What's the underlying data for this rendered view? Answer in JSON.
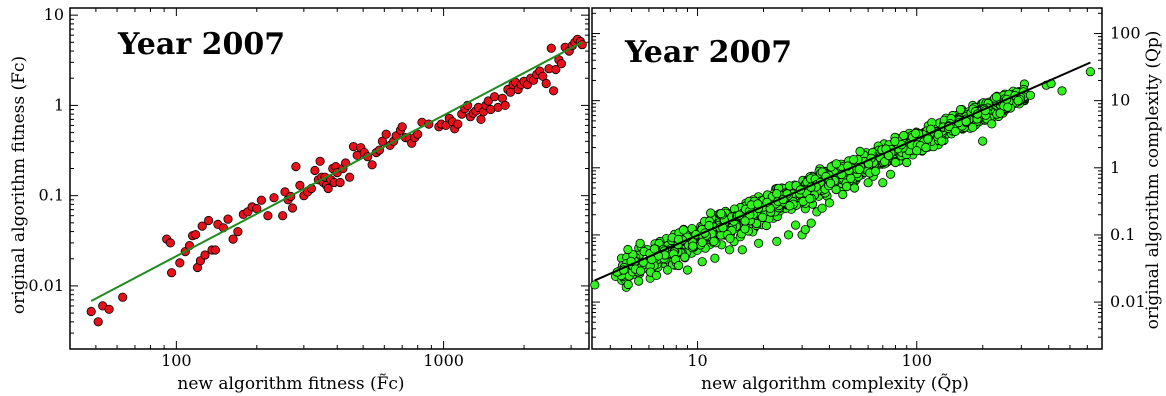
{
  "chart_data": [
    {
      "type": "scatter",
      "title": "Year 2007",
      "xlabel": "new algorithm fitness (F̃c)",
      "ylabel": "original algorithm fitness (Fc)",
      "xscale": "log",
      "yscale": "log",
      "xlim": [
        40,
        3500
      ],
      "ylim": [
        0.002,
        12
      ],
      "xticks": [
        100,
        1000
      ],
      "xtick_labels": [
        "100",
        "1000"
      ],
      "yticks": [
        0.01,
        0.1,
        1,
        10
      ],
      "ytick_labels": [
        "0.01",
        "0.1",
        "1",
        "10"
      ],
      "y_axis_side": "left",
      "grid": false,
      "colors": {
        "points": "#e8101a",
        "fit_line": "#1f8b1f"
      },
      "fit_line": [
        [
          48,
          0.0068
        ],
        [
          3300,
          5.0
        ]
      ],
      "series": [
        {
          "points": [
            [
              48,
              0.0052
            ],
            [
              51,
              0.004
            ],
            [
              53,
              0.006
            ],
            [
              56,
              0.0055
            ],
            [
              63,
              0.0075
            ],
            [
              92,
              0.033
            ],
            [
              95,
              0.03
            ],
            [
              96,
              0.014
            ],
            [
              103,
              0.018
            ],
            [
              108,
              0.024
            ],
            [
              112,
              0.028
            ],
            [
              115,
              0.036
            ],
            [
              118,
              0.037
            ],
            [
              120,
              0.016
            ],
            [
              123,
              0.019
            ],
            [
              125,
              0.046
            ],
            [
              128,
              0.022
            ],
            [
              132,
              0.053
            ],
            [
              136,
              0.025
            ],
            [
              140,
              0.025
            ],
            [
              143,
              0.048
            ],
            [
              150,
              0.044
            ],
            [
              156,
              0.055
            ],
            [
              163,
              0.033
            ],
            [
              170,
              0.04
            ],
            [
              178,
              0.062
            ],
            [
              185,
              0.066
            ],
            [
              192,
              0.075
            ],
            [
              200,
              0.072
            ],
            [
              208,
              0.089
            ],
            [
              220,
              0.06
            ],
            [
              232,
              0.095
            ],
            [
              250,
              0.06
            ],
            [
              255,
              0.11
            ],
            [
              262,
              0.09
            ],
            [
              268,
              0.098
            ],
            [
              272,
              0.073
            ],
            [
              280,
              0.21
            ],
            [
              290,
              0.13
            ],
            [
              300,
              0.1
            ],
            [
              310,
              0.11
            ],
            [
              320,
              0.12
            ],
            [
              330,
              0.19
            ],
            [
              340,
              0.15
            ],
            [
              345,
              0.24
            ],
            [
              350,
              0.16
            ],
            [
              355,
              0.14
            ],
            [
              360,
              0.16
            ],
            [
              365,
              0.13
            ],
            [
              370,
              0.12
            ],
            [
              378,
              0.15
            ],
            [
              385,
              0.2
            ],
            [
              390,
              0.14
            ],
            [
              395,
              0.21
            ],
            [
              400,
              0.18
            ],
            [
              410,
              0.14
            ],
            [
              420,
              0.2
            ],
            [
              430,
              0.23
            ],
            [
              445,
              0.16
            ],
            [
              460,
              0.35
            ],
            [
              475,
              0.28
            ],
            [
              490,
              0.34
            ],
            [
              505,
              0.3
            ],
            [
              520,
              0.27
            ],
            [
              540,
              0.22
            ],
            [
              560,
              0.3
            ],
            [
              575,
              0.32
            ],
            [
              590,
              0.4
            ],
            [
              610,
              0.48
            ],
            [
              630,
              0.36
            ],
            [
              650,
              0.4
            ],
            [
              665,
              0.46
            ],
            [
              690,
              0.53
            ],
            [
              700,
              0.58
            ],
            [
              720,
              0.44
            ],
            [
              745,
              0.43
            ],
            [
              760,
              0.38
            ],
            [
              780,
              0.44
            ],
            [
              800,
              0.48
            ],
            [
              830,
              0.65
            ],
            [
              880,
              0.62
            ],
            [
              960,
              0.58
            ],
            [
              980,
              0.62
            ],
            [
              1020,
              0.6
            ],
            [
              1050,
              0.72
            ],
            [
              1080,
              0.66
            ],
            [
              1100,
              0.55
            ],
            [
              1130,
              0.62
            ],
            [
              1170,
              0.8
            ],
            [
              1200,
              0.92
            ],
            [
              1230,
              1.0
            ],
            [
              1260,
              0.75
            ],
            [
              1290,
              0.82
            ],
            [
              1320,
              0.87
            ],
            [
              1350,
              0.95
            ],
            [
              1380,
              0.7
            ],
            [
              1410,
              0.85
            ],
            [
              1440,
              1.0
            ],
            [
              1470,
              1.12
            ],
            [
              1500,
              0.9
            ],
            [
              1550,
              1.25
            ],
            [
              1600,
              0.95
            ],
            [
              1660,
              1.2
            ],
            [
              1700,
              1.0
            ],
            [
              1740,
              1.5
            ],
            [
              1780,
              1.4
            ],
            [
              1820,
              1.7
            ],
            [
              1860,
              1.8
            ],
            [
              1900,
              1.5
            ],
            [
              1950,
              1.7
            ],
            [
              2000,
              1.85
            ],
            [
              2060,
              1.7
            ],
            [
              2120,
              2.0
            ],
            [
              2170,
              1.9
            ],
            [
              2230,
              2.2
            ],
            [
              2290,
              2.4
            ],
            [
              2350,
              2.1
            ],
            [
              2420,
              1.75
            ],
            [
              2480,
              2.55
            ],
            [
              2530,
              4.3
            ],
            [
              2580,
              1.45
            ],
            [
              2630,
              2.5
            ],
            [
              2700,
              3.2
            ],
            [
              2760,
              2.9
            ],
            [
              2850,
              4.4
            ],
            [
              2950,
              4.0
            ],
            [
              3030,
              4.6
            ],
            [
              3100,
              5.0
            ],
            [
              3170,
              5.4
            ],
            [
              3250,
              5.1
            ],
            [
              3300,
              4.7
            ]
          ]
        }
      ]
    },
    {
      "type": "scatter",
      "title": "Year 2007",
      "xlabel": "new algorithm complexity (Q̃p)",
      "ylabel": "original algorithm complexity (Qp)",
      "xscale": "log",
      "yscale": "log",
      "xlim": [
        3.3,
        700
      ],
      "ylim": [
        0.002,
        240
      ],
      "xticks": [
        10,
        100
      ],
      "xtick_labels": [
        "10",
        "100"
      ],
      "yticks": [
        0.01,
        0.1,
        1,
        10,
        100
      ],
      "ytick_labels": [
        "0.01",
        "0.1",
        "1",
        "10",
        "100"
      ],
      "y_axis_side": "right",
      "grid": false,
      "colors": {
        "points": "#2ff51d",
        "fit_line": "#000000"
      },
      "fit_line": [
        [
          3.4,
          0.021
        ],
        [
          620,
          37
        ]
      ],
      "series": [
        {
          "band": {
            "x_from": 4.2,
            "x_to": 310,
            "spread_decades": 0.72,
            "count": 1800
          },
          "points": [
            [
              3.4,
              0.018
            ],
            [
              4.3,
              0.028
            ],
            [
              4.6,
              0.03
            ],
            [
              5.2,
              0.031
            ],
            [
              5.5,
              0.029
            ],
            [
              6.1,
              0.028
            ],
            [
              6.5,
              0.025
            ],
            [
              7.3,
              0.03
            ],
            [
              8.2,
              0.035
            ],
            [
              9.0,
              0.03
            ],
            [
              10.5,
              0.04
            ],
            [
              12,
              0.045
            ],
            [
              14,
              0.06
            ],
            [
              16,
              0.06
            ],
            [
              19,
              0.075
            ],
            [
              23,
              0.08
            ],
            [
              26,
              0.1
            ],
            [
              28,
              0.14
            ],
            [
              30,
              0.1
            ],
            [
              31,
              0.12
            ],
            [
              33,
              0.15
            ],
            [
              35,
              0.22
            ],
            [
              37,
              0.25
            ],
            [
              40,
              0.3
            ],
            [
              46,
              0.4
            ],
            [
              52,
              0.5
            ],
            [
              60,
              0.6
            ],
            [
              70,
              0.6
            ],
            [
              76,
              0.8
            ],
            [
              80,
              1.2
            ],
            [
              90,
              1.2
            ],
            [
              100,
              1.8
            ],
            [
              110,
              2.0
            ],
            [
              130,
              2.5
            ],
            [
              150,
              3.5
            ],
            [
              180,
              4.0
            ],
            [
              200,
              2.5
            ],
            [
              220,
              4.5
            ],
            [
              240,
              6.5
            ],
            [
              260,
              8.0
            ],
            [
              290,
              10
            ],
            [
              330,
              12
            ],
            [
              390,
              17
            ],
            [
              410,
              18
            ],
            [
              460,
              14
            ],
            [
              620,
              27
            ]
          ]
        }
      ]
    }
  ]
}
